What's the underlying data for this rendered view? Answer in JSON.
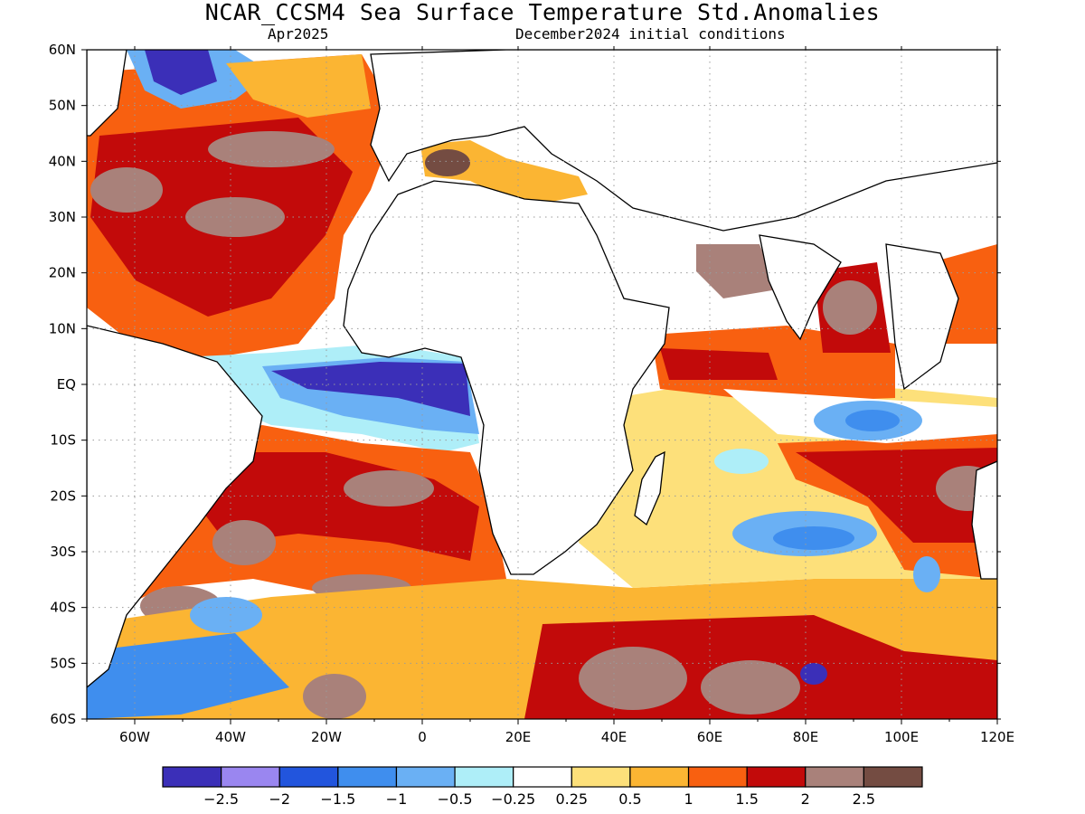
{
  "title": "NCAR_CCSM4 Sea Surface Temperature Std.Anomalies",
  "subtitle_left": "Apr2025",
  "subtitle_right": "December2024 initial conditions",
  "map": {
    "lon_range": [
      -70,
      120
    ],
    "lat_range": [
      -60,
      60
    ],
    "lat_ticks": [
      "60N",
      "50N",
      "40N",
      "30N",
      "20N",
      "10N",
      "EQ",
      "10S",
      "20S",
      "30S",
      "40S",
      "50S",
      "60S"
    ],
    "lon_ticks": [
      "60W",
      "40W",
      "20W",
      "0",
      "20E",
      "40E",
      "60E",
      "80E",
      "100E",
      "120E"
    ],
    "gridlines": "dotted"
  },
  "colorbar": {
    "colors": [
      "#3b2fb8",
      "#9a86f0",
      "#2255dd",
      "#3f8eee",
      "#6ab0f4",
      "#aeeef8",
      "#ffffff",
      "#fde07a",
      "#fbb533",
      "#f86010",
      "#c20a0a",
      "#a9817a",
      "#744c42"
    ],
    "labels": [
      "−2.5",
      "−2",
      "−1.5",
      "−1",
      "−0.5",
      "−0.25",
      "0.25",
      "0.5",
      "1",
      "1.5",
      "2",
      "2.5"
    ]
  }
}
